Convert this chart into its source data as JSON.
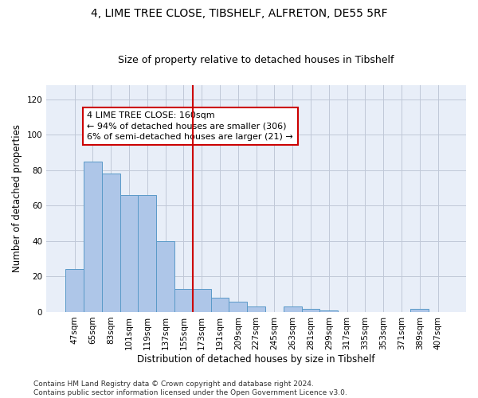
{
  "title_line1": "4, LIME TREE CLOSE, TIBSHELF, ALFRETON, DE55 5RF",
  "title_line2": "Size of property relative to detached houses in Tibshelf",
  "xlabel": "Distribution of detached houses by size in Tibshelf",
  "ylabel": "Number of detached properties",
  "categories": [
    "47sqm",
    "65sqm",
    "83sqm",
    "101sqm",
    "119sqm",
    "137sqm",
    "155sqm",
    "173sqm",
    "191sqm",
    "209sqm",
    "227sqm",
    "245sqm",
    "263sqm",
    "281sqm",
    "299sqm",
    "317sqm",
    "335sqm",
    "353sqm",
    "371sqm",
    "389sqm",
    "407sqm"
  ],
  "values": [
    24,
    85,
    78,
    66,
    66,
    40,
    13,
    13,
    8,
    6,
    3,
    0,
    3,
    2,
    1,
    0,
    0,
    0,
    0,
    2,
    0
  ],
  "bar_color": "#aec6e8",
  "bar_edge_color": "#5a9ac8",
  "vline_index": 7,
  "vline_color": "#cc0000",
  "annotation_text": "4 LIME TREE CLOSE: 160sqm\n← 94% of detached houses are smaller (306)\n6% of semi-detached houses are larger (21) →",
  "annotation_box_color": "#ffffff",
  "annotation_box_edge_color": "#cc0000",
  "ylim": [
    0,
    128
  ],
  "yticks": [
    0,
    20,
    40,
    60,
    80,
    100,
    120
  ],
  "grid_color": "#c0c8d8",
  "bg_color": "#e8eef8",
  "footer_line1": "Contains HM Land Registry data © Crown copyright and database right 2024.",
  "footer_line2": "Contains public sector information licensed under the Open Government Licence v3.0.",
  "title_fontsize": 10,
  "subtitle_fontsize": 9,
  "axis_label_fontsize": 8.5,
  "tick_fontsize": 7.5,
  "annotation_fontsize": 8,
  "footer_fontsize": 6.5
}
